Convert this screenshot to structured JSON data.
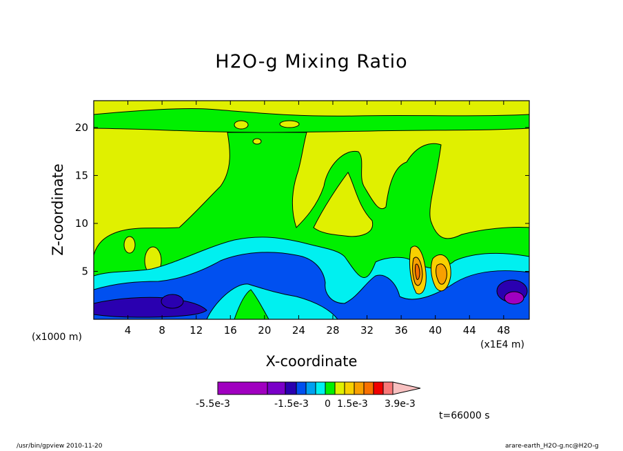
{
  "chart_data": {
    "type": "heatmap",
    "title": "H2O-g Mixing Ratio",
    "xlabel": "X-coordinate",
    "ylabel": "Z-coordinate",
    "x_unit_label": "(x1000 m)",
    "x_scale_label": "(x1E4 m)",
    "xlim": [
      0,
      51
    ],
    "ylim": [
      0,
      22.8
    ],
    "x_ticks": [
      4,
      8,
      12,
      16,
      20,
      24,
      28,
      32,
      36,
      40,
      44,
      48
    ],
    "y_ticks": [
      5,
      10,
      15,
      20
    ],
    "colorbar": {
      "colors": [
        "#a000c0",
        "#7a00c8",
        "#2a00b0",
        "#0050f0",
        "#00a0f0",
        "#00f0f0",
        "#00f000",
        "#e0f000",
        "#f8d000",
        "#f8a000",
        "#f87000",
        "#f00000",
        "#f87878",
        "#f8c0c0"
      ],
      "tick_labels": [
        "-5.5e-3",
        "-1.5e-3",
        "0",
        "1.5e-3",
        "3.9e-3"
      ]
    },
    "legend": "none",
    "grid": false
  },
  "annotations": {
    "time": "t=66000 s",
    "footer_left": "/usr/bin/gpview  2010-11-20",
    "footer_right": "arare-earth_H2O-g.nc@H2O-g"
  }
}
